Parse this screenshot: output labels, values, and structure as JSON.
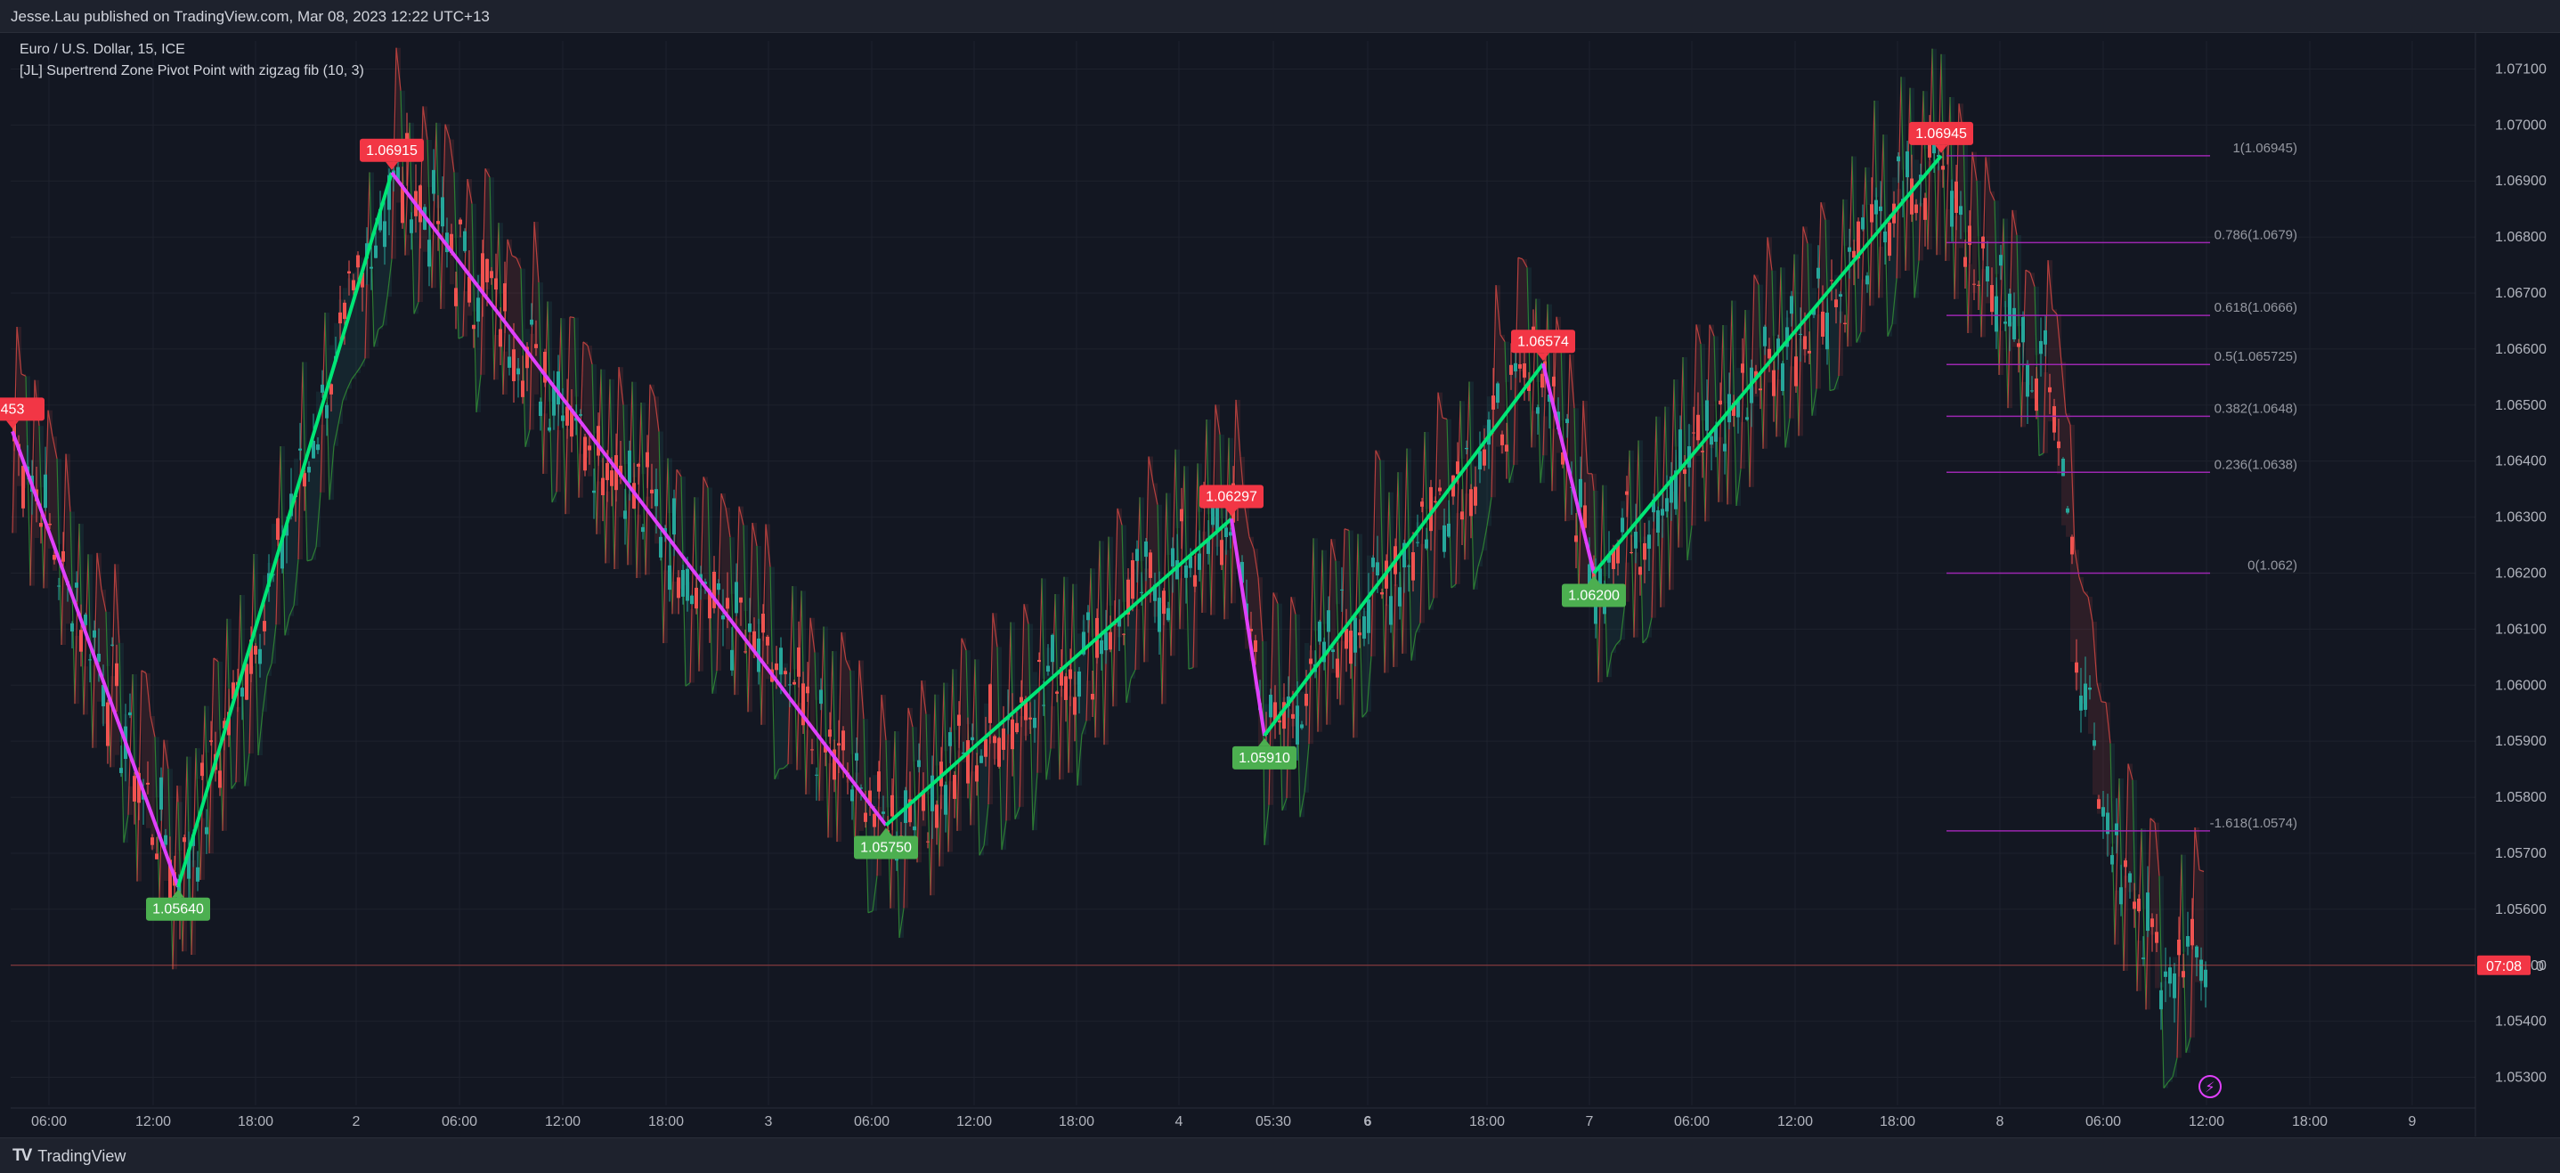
{
  "header": {
    "published_by": "Jesse.Lau published on TradingView.com, Mar 08, 2023 12:22 UTC+13"
  },
  "legend": {
    "symbol": "Euro / U.S. Dollar, 15, ICE",
    "indicator": "[JL] Supertrend Zone Pivot Point with zigzag fib (10, 3)"
  },
  "footer": {
    "brand": "TradingView",
    "logo": "tv-logo-icon"
  },
  "colors": {
    "background": "#131722",
    "up_candle": "#26a69a",
    "down_candle": "#ef5350",
    "zigzag_up": "#00e676",
    "zigzag_down": "#e040fb",
    "fib_line": "#9c27b0",
    "pivot_high": "#f23645",
    "pivot_low": "#4caf50"
  },
  "chart_data": {
    "type": "candlestick",
    "ylim": [
      1.0525,
      1.0715
    ],
    "y_ticks": [
      "1.07100",
      "1.07000",
      "1.06900",
      "1.06800",
      "1.06700",
      "1.06600",
      "1.06500",
      "1.06400",
      "1.06300",
      "1.06200",
      "1.06100",
      "1.06000",
      "1.05900",
      "1.05800",
      "1.05700",
      "1.05600",
      "1.05500",
      "1.05400",
      "1.05300"
    ],
    "x_ticks": [
      "06:00",
      "12:00",
      "18:00",
      "2",
      "06:00",
      "12:00",
      "18:00",
      "3",
      "06:00",
      "12:00",
      "18:00",
      "4",
      "05:30",
      "6",
      "18:00",
      "7",
      "06:00",
      "12:00",
      "18:00",
      "8",
      "06:00",
      "12:00",
      "18:00",
      "9"
    ],
    "x_ticks_bold": [
      false,
      false,
      false,
      false,
      false,
      false,
      false,
      false,
      false,
      false,
      false,
      false,
      false,
      true,
      false,
      false,
      false,
      false,
      false,
      false,
      false,
      false,
      false,
      false
    ],
    "pivots": [
      {
        "label": "453",
        "type": "high",
        "price": 1.06453
      },
      {
        "label": "1.05640",
        "type": "low",
        "price": 1.0564
      },
      {
        "label": "1.06915",
        "type": "high",
        "price": 1.06915
      },
      {
        "label": "1.05750",
        "type": "low",
        "price": 1.0575
      },
      {
        "label": "1.06297",
        "type": "high",
        "price": 1.06297
      },
      {
        "label": "1.05910",
        "type": "low",
        "price": 1.0591
      },
      {
        "label": "1.06574",
        "type": "high",
        "price": 1.06574
      },
      {
        "label": "1.06200",
        "type": "low",
        "price": 1.062
      },
      {
        "label": "1.06945",
        "type": "high",
        "price": 1.06945
      }
    ],
    "fib_levels": [
      {
        "label": "1(1.06945)",
        "price": 1.06945
      },
      {
        "label": "0.786(1.0679)",
        "price": 1.0679
      },
      {
        "label": "0.618(1.0666)",
        "price": 1.0666
      },
      {
        "label": "0.5(1.065725)",
        "price": 1.065725
      },
      {
        "label": "0.382(1.0648)",
        "price": 1.0648
      },
      {
        "label": "0.236(1.0638)",
        "price": 1.0638
      },
      {
        "label": "0(1.062)",
        "price": 1.062
      },
      {
        "label": "-1.618(1.0574)",
        "price": 1.0574
      }
    ],
    "current_price": 1.055,
    "current_price_label": "07:08",
    "current_price_suffix": "0",
    "zigzag": [
      1.06453,
      1.0564,
      1.06915,
      1.0575,
      1.06297,
      1.0591,
      1.06574,
      1.062,
      1.06945
    ]
  }
}
